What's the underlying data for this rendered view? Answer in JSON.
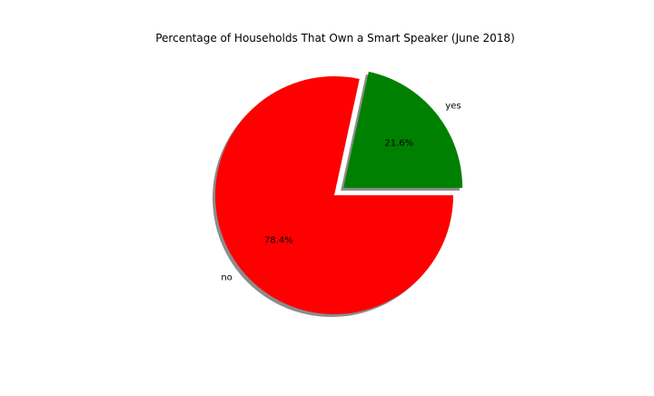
{
  "chart_data": {
    "type": "pie",
    "title": "Percentage of Households That Own a Smart Speaker (June 2018)",
    "slices": [
      {
        "label": "yes",
        "value": 21.6,
        "percent_label": "21.6%",
        "color": "#008000",
        "exploded": true
      },
      {
        "label": "no",
        "value": 78.4,
        "percent_label": "78.4%",
        "color": "#ff0000",
        "exploded": false
      }
    ],
    "start_angle_deg": 0,
    "direction": "counterclockwise",
    "shadow": true,
    "legend": "none"
  }
}
